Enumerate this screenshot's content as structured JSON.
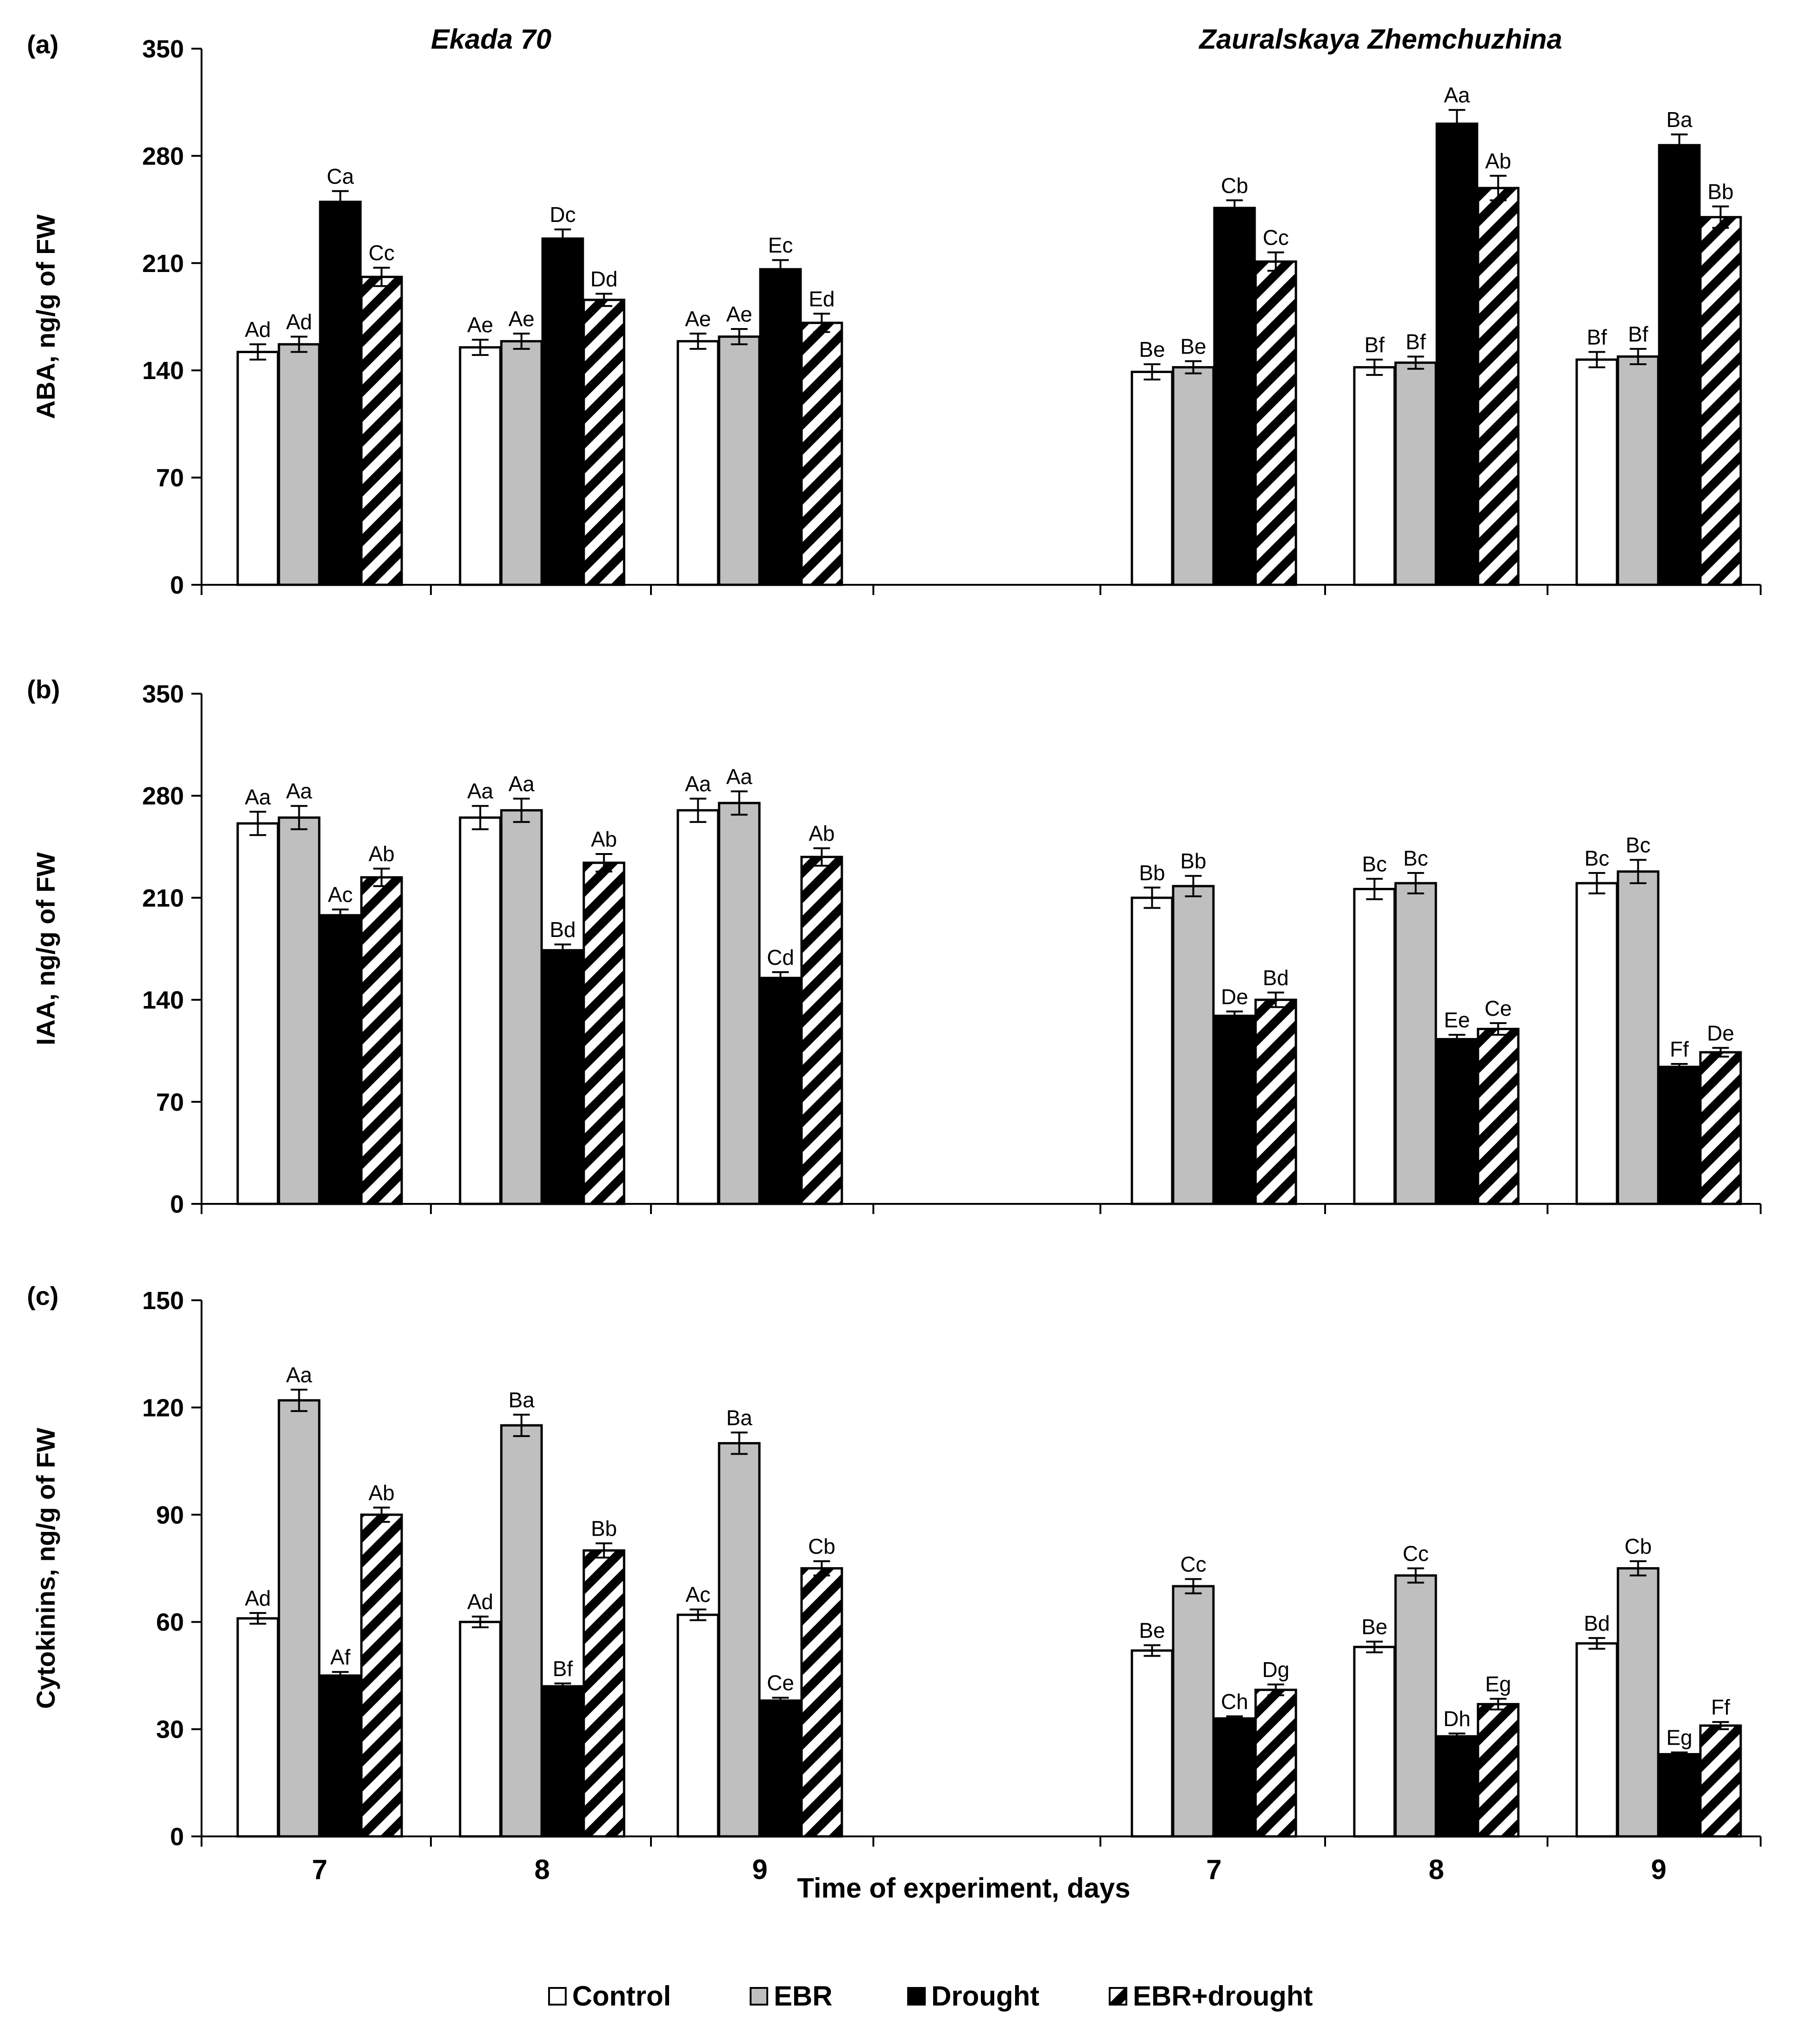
{
  "chart_data": {
    "type": "bar",
    "xlabel": "Time of experiment, days",
    "group_titles": [
      "Ekada 70",
      "Zauralskaya Zhemchuzhina"
    ],
    "x": [
      "7",
      "8",
      "9",
      "7",
      "8",
      "9"
    ],
    "legend": {
      "placement": "bottom-center",
      "entries": [
        {
          "label": "Control",
          "fill": "#ffffff"
        },
        {
          "label": "EBR",
          "fill": "#bfbfbf"
        },
        {
          "label": "Drought",
          "fill": "#000000"
        },
        {
          "label": "EBR+drought",
          "fill": "hatch"
        }
      ]
    },
    "colors": {
      "control": "#ffffff",
      "ebr": "#bfbfbf",
      "drought": "#000000",
      "hatch": "#000000",
      "outline": "#000000"
    },
    "panels": [
      {
        "label": "(a)",
        "ylabel": "ABA, ng/g of FW",
        "ylim": [
          0,
          350
        ],
        "yticks": [
          0,
          70,
          140,
          210,
          280,
          350
        ],
        "series": [
          {
            "name": "Control",
            "values": [
              152,
              155,
              159,
              139,
              142,
              147
            ],
            "errors": [
              5,
              5,
              5,
              5,
              5,
              5
            ],
            "labels": [
              "Ad",
              "Ae",
              "Ae",
              "Be",
              "Bf",
              "Bf"
            ]
          },
          {
            "name": "EBR",
            "values": [
              157,
              159,
              162,
              142,
              145,
              149
            ],
            "errors": [
              5,
              5,
              5,
              4,
              4,
              5
            ],
            "labels": [
              "Ad",
              "Ae",
              "Ae",
              "Be",
              "Bf",
              "Bf"
            ]
          },
          {
            "name": "Drought",
            "values": [
              250,
              226,
              206,
              246,
              301,
              287
            ],
            "errors": [
              7,
              6,
              6,
              5,
              9,
              7
            ],
            "labels": [
              "Ca",
              "Dc",
              "Ec",
              "Cb",
              "Aa",
              "Ba"
            ]
          },
          {
            "name": "EBR+drought",
            "values": [
              201,
              186,
              171,
              211,
              259,
              240
            ],
            "errors": [
              6,
              4,
              6,
              6,
              8,
              7
            ],
            "labels": [
              "Cc",
              "Dd",
              "Ed",
              "Cc",
              "Ab",
              "Bb"
            ]
          }
        ]
      },
      {
        "label": "(b)",
        "ylabel": "IAA, ng/g of FW",
        "ylim": [
          0,
          350
        ],
        "yticks": [
          0,
          70,
          140,
          210,
          280,
          350
        ],
        "series": [
          {
            "name": "Control",
            "values": [
              261,
              265,
              270,
              210,
              216,
              220
            ],
            "errors": [
              8,
              8,
              8,
              7,
              7,
              7
            ],
            "labels": [
              "Aa",
              "Aa",
              "Aa",
              "Bb",
              "Bc",
              "Bc"
            ]
          },
          {
            "name": "EBR",
            "values": [
              265,
              270,
              275,
              218,
              220,
              228
            ],
            "errors": [
              8,
              8,
              8,
              7,
              7,
              8
            ],
            "labels": [
              "Aa",
              "Aa",
              "Aa",
              "Bb",
              "Bc",
              "Bc"
            ]
          },
          {
            "name": "Drought",
            "values": [
              198,
              174,
              155,
              129,
              113,
              94
            ],
            "errors": [
              4,
              4,
              4,
              3,
              3,
              2
            ],
            "labels": [
              "Ac",
              "Bd",
              "Cd",
              "De",
              "Ee",
              "Ff"
            ]
          },
          {
            "name": "EBR+drought",
            "values": [
              224,
              234,
              238,
              140,
              120,
              104
            ],
            "errors": [
              6,
              6,
              6,
              5,
              4,
              3
            ],
            "labels": [
              "Ab",
              "Ab",
              "Ab",
              "Bd",
              "Ce",
              "De"
            ]
          }
        ]
      },
      {
        "label": "(c)",
        "ylabel": "Cytokinins, ng/g of FW",
        "ylim": [
          0,
          150
        ],
        "yticks": [
          0,
          30,
          60,
          90,
          120,
          150
        ],
        "series": [
          {
            "name": "Control",
            "values": [
              61,
              60,
              62,
              52,
              53,
              54
            ],
            "errors": [
              1.5,
              1.5,
              1.5,
              1.5,
              1.5,
              1.5
            ],
            "labels": [
              "Ad",
              "Ad",
              "Ac",
              "Be",
              "Be",
              "Bd"
            ]
          },
          {
            "name": "EBR",
            "values": [
              122,
              115,
              110,
              70,
              73,
              75
            ],
            "errors": [
              3,
              3,
              3,
              2,
              2,
              2
            ],
            "labels": [
              "Aa",
              "Ba",
              "Ba",
              "Cc",
              "Cc",
              "Cb"
            ]
          },
          {
            "name": "Drought",
            "values": [
              45,
              42,
              38,
              33,
              28,
              23
            ],
            "errors": [
              1,
              0.8,
              0.8,
              0.6,
              0.8,
              0.5
            ],
            "labels": [
              "Af",
              "Bf",
              "Ce",
              "Ch",
              "Dh",
              "Eg"
            ]
          },
          {
            "name": "EBR+drought",
            "values": [
              90,
              80,
              75,
              41,
              37,
              31
            ],
            "errors": [
              2,
              2,
              2,
              1.5,
              1.5,
              1
            ],
            "labels": [
              "Ab",
              "Bb",
              "Cb",
              "Dg",
              "Eg",
              "Ff"
            ]
          }
        ]
      }
    ]
  }
}
